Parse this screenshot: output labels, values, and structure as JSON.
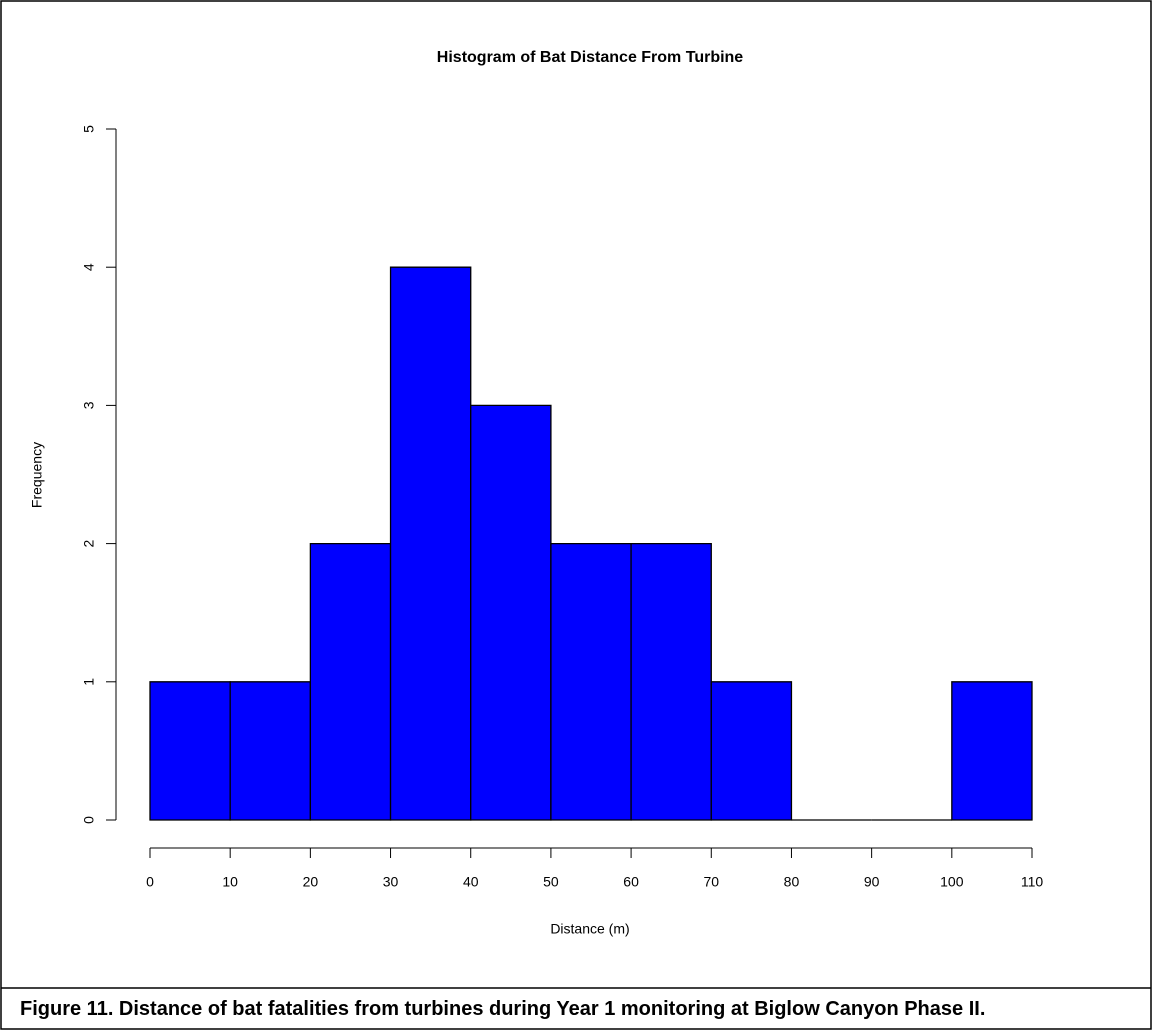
{
  "chart_data": {
    "type": "histogram",
    "title": "Histogram of Bat Distance From Turbine",
    "x_label": "Distance (m)",
    "y_label": "Frequency",
    "bins": [
      0,
      10,
      20,
      30,
      40,
      50,
      60,
      70,
      80,
      90,
      100,
      110
    ],
    "values": [
      1,
      1,
      2,
      4,
      3,
      2,
      2,
      1,
      0,
      0,
      1
    ],
    "color": "#0000ff",
    "xlim": [
      0,
      110
    ],
    "xticks": [
      0,
      10,
      20,
      30,
      40,
      50,
      60,
      70,
      80,
      90,
      100,
      110
    ],
    "ylim": [
      0,
      5
    ],
    "yticks": [
      0,
      1,
      2,
      3,
      4,
      5
    ],
    "caption": "Figure 11. Distance of bat fatalities from turbines during Year 1 monitoring at Biglow Canyon Phase II."
  }
}
